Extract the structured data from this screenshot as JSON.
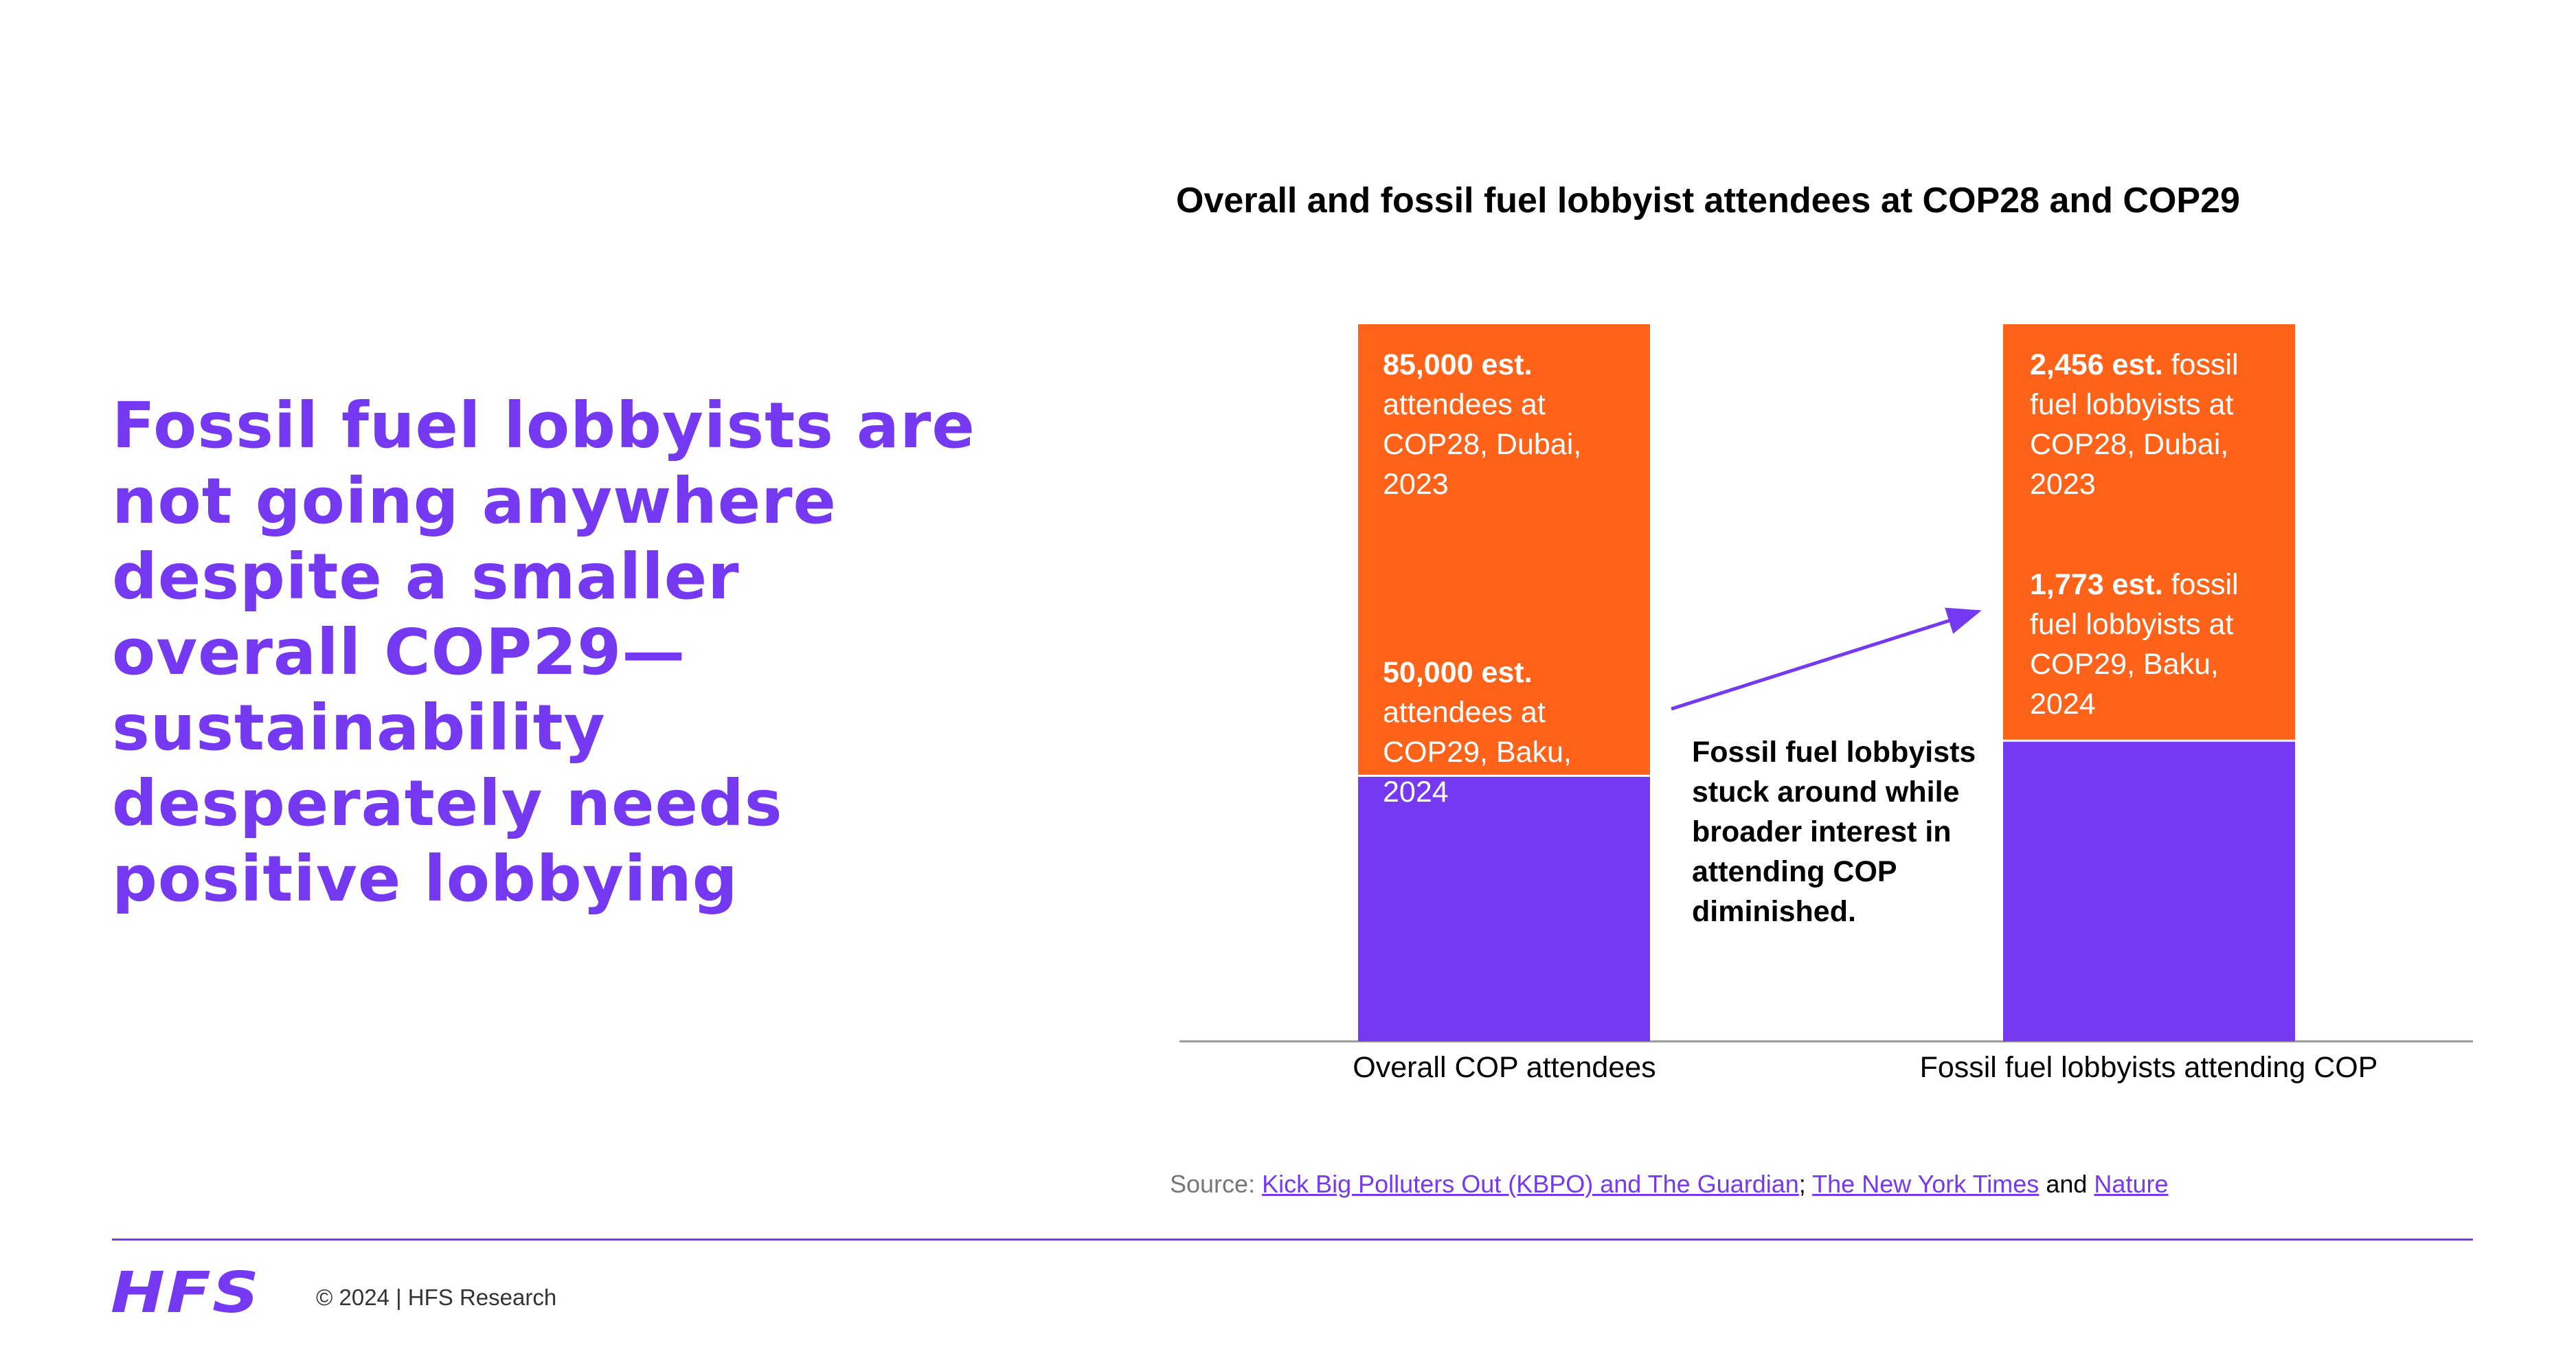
{
  "headline": "Fossil fuel lobbyists are not going anywhere despite a smaller overall COP29—sustainability desperately needs positive lobbying",
  "colors": {
    "accent": "#7539F2",
    "cop28": "#FF6319",
    "cop29": "#7539F2"
  },
  "chart_data": {
    "type": "bar",
    "stacked": true,
    "title": "Overall and fossil fuel lobbyist attendees at COP28 and COP29",
    "categories": [
      "Overall COP attendees",
      "Fossil fuel lobbyists attending COP"
    ],
    "series": [
      {
        "key": "cop29",
        "values": [
          50000,
          1773
        ],
        "color": "#7539F2"
      },
      {
        "key": "cop28",
        "values": [
          85000,
          2456
        ],
        "color": "#FF6319"
      }
    ],
    "labels": {
      "cop28_overall": {
        "bold": "85,000 est.",
        "rest": "attendees at COP28, Dubai, 2023"
      },
      "cop29_overall": {
        "bold": "50,000 est.",
        "rest": "attendees at COP29, Baku, 2024"
      },
      "cop28_lobby": {
        "bold": "2,456 est.",
        "rest": "fossil fuel lobbyists at COP28, Dubai, 2023"
      },
      "cop29_lobby": {
        "bold": "1,773 est.",
        "rest": "fossil fuel lobbyists at COP29, Baku, 2024"
      }
    },
    "annotation": "Fossil fuel lobbyists stuck around while broader interest in attending COP diminished."
  },
  "source": {
    "prefix": "Source:",
    "link1": "Kick Big Polluters Out (KBPO) and The Guardian",
    "sep": ";",
    "link2": "The New York Times",
    "and": "and",
    "link3": "Nature"
  },
  "footer": {
    "logo": "HFS",
    "copyright": "© 2024 | HFS Research"
  }
}
